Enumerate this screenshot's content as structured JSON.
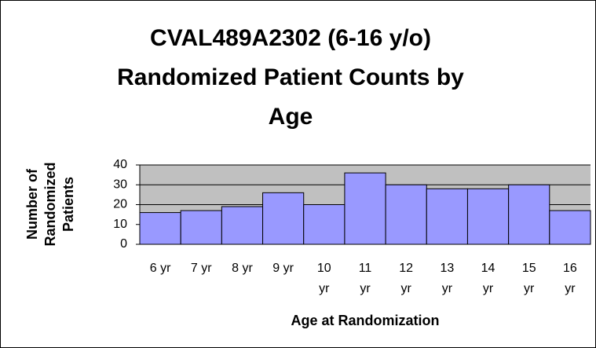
{
  "chart_data": {
    "type": "bar",
    "title": "CVAL489A2302 (6-16 y/o) Randomized Patient Counts by Age",
    "x_label": "Age at Randomization",
    "y_label": "Number of Randomized Patients",
    "categories": [
      "6 yr",
      "7 yr",
      "8 yr",
      "9 yr",
      "10 yr",
      "11 yr",
      "12 yr",
      "13 yr",
      "14 yr",
      "15 yr",
      "16 yr"
    ],
    "values": [
      16,
      17,
      19,
      26,
      20,
      36,
      30,
      28,
      28,
      30,
      17
    ],
    "color": "#9999ff",
    "plot_background": "#c0c0c0",
    "ylim": [
      0,
      40
    ],
    "yticks": [
      0,
      10,
      20,
      30,
      40
    ],
    "grid": true
  }
}
